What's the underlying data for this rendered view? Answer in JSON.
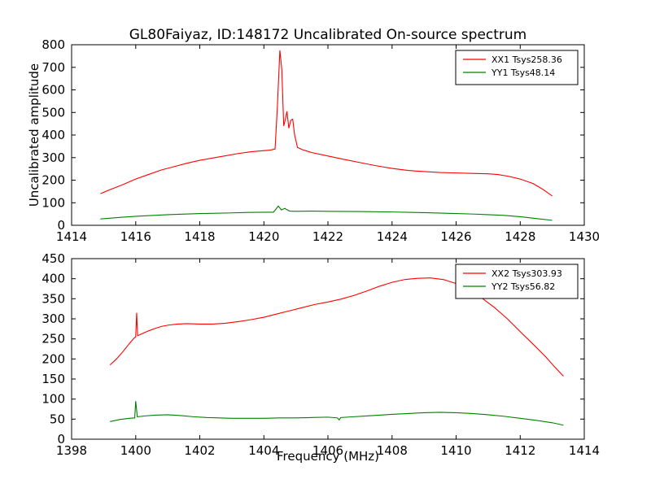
{
  "title": "GL80Faiyaz, ID:148172 Uncalibrated On-source spectrum",
  "chart_data": [
    {
      "type": "line",
      "xlim": [
        1414,
        1430
      ],
      "ylim": [
        0,
        800
      ],
      "xticks": [
        1414,
        1416,
        1418,
        1420,
        1422,
        1424,
        1426,
        1428,
        1430
      ],
      "yticks": [
        0,
        100,
        200,
        300,
        400,
        500,
        600,
        700,
        800
      ],
      "xlabel": "",
      "ylabel": "Uncalibrated amplitude",
      "grid": false,
      "legend_position": "top-right",
      "series": [
        {
          "name": "XX1 Tsys258.36",
          "color": "#ff0000",
          "x": [
            1414.9,
            1415.2,
            1415.6,
            1416.0,
            1416.4,
            1416.8,
            1417.2,
            1417.6,
            1418.0,
            1418.4,
            1418.8,
            1419.2,
            1419.6,
            1420.0,
            1420.2,
            1420.35,
            1420.42,
            1420.5,
            1420.56,
            1420.62,
            1420.68,
            1420.72,
            1420.78,
            1420.84,
            1420.9,
            1420.96,
            1421.05,
            1421.2,
            1421.5,
            1422.0,
            1422.5,
            1423.0,
            1423.5,
            1424.0,
            1424.5,
            1425.0,
            1425.5,
            1426.0,
            1426.5,
            1427.0,
            1427.3,
            1427.6,
            1428.0,
            1428.4,
            1428.7,
            1429.0
          ],
          "y": [
            140,
            158,
            180,
            205,
            225,
            245,
            260,
            275,
            288,
            298,
            308,
            318,
            326,
            331,
            333,
            338,
            520,
            775,
            690,
            440,
            475,
            505,
            430,
            465,
            470,
            400,
            345,
            335,
            322,
            307,
            292,
            278,
            264,
            252,
            243,
            238,
            234,
            232,
            230,
            228,
            225,
            218,
            205,
            185,
            160,
            130
          ]
        },
        {
          "name": "YY1 Tsys48.14",
          "color": "#008000",
          "x": [
            1414.9,
            1415.5,
            1416,
            1417,
            1418,
            1419,
            1419.5,
            1420,
            1420.3,
            1420.45,
            1420.55,
            1420.65,
            1420.8,
            1421,
            1421.5,
            1422,
            1423,
            1424,
            1425,
            1426,
            1426.5,
            1427,
            1427.5,
            1428,
            1428.5,
            1429
          ],
          "y": [
            28,
            35,
            40,
            47,
            52,
            55,
            57,
            58,
            58,
            85,
            68,
            75,
            63,
            62,
            63,
            62,
            61,
            59,
            56,
            52,
            50,
            47,
            44,
            38,
            30,
            22
          ]
        }
      ]
    },
    {
      "type": "line",
      "xlim": [
        1398,
        1414
      ],
      "ylim": [
        0,
        450
      ],
      "xticks": [
        1398,
        1400,
        1402,
        1404,
        1406,
        1408,
        1410,
        1412,
        1414
      ],
      "yticks": [
        0,
        50,
        100,
        150,
        200,
        250,
        300,
        350,
        400,
        450
      ],
      "xlabel": "Frequency (MHz)",
      "ylabel": "",
      "grid": false,
      "legend_position": "top-right",
      "series": [
        {
          "name": "XX2 Tsys303.93",
          "color": "#ff0000",
          "x": [
            1399.2,
            1399.4,
            1399.6,
            1399.8,
            1399.95,
            1400.0,
            1400.03,
            1400.06,
            1400.2,
            1400.4,
            1400.6,
            1400.8,
            1401.0,
            1401.3,
            1401.6,
            1402.0,
            1402.4,
            1402.8,
            1403.2,
            1403.6,
            1404.0,
            1404.4,
            1404.8,
            1405.2,
            1405.6,
            1406.0,
            1406.4,
            1406.8,
            1407.2,
            1407.6,
            1408.0,
            1408.4,
            1408.8,
            1409.2,
            1409.6,
            1410.0,
            1410.4,
            1410.8,
            1411.2,
            1411.6,
            1412.0,
            1412.4,
            1412.8,
            1413.1,
            1413.35
          ],
          "y": [
            185,
            200,
            218,
            238,
            252,
            255,
            315,
            258,
            263,
            270,
            276,
            281,
            284,
            287,
            288,
            287,
            287,
            289,
            293,
            298,
            304,
            312,
            320,
            328,
            336,
            342,
            349,
            358,
            369,
            381,
            391,
            398,
            401,
            402,
            398,
            388,
            372,
            352,
            328,
            300,
            268,
            237,
            205,
            178,
            157
          ]
        },
        {
          "name": "YY2 Tsys56.82",
          "color": "#008000",
          "x": [
            1399.2,
            1399.5,
            1399.8,
            1399.97,
            1400.0,
            1400.05,
            1400.3,
            1400.6,
            1401.0,
            1401.4,
            1401.8,
            1402.2,
            1402.6,
            1403.0,
            1403.5,
            1404.0,
            1404.5,
            1405.0,
            1405.5,
            1406.0,
            1406.3,
            1406.35,
            1406.4,
            1406.8,
            1407.2,
            1407.6,
            1408.0,
            1408.5,
            1409.0,
            1409.5,
            1410.0,
            1410.5,
            1411.0,
            1411.5,
            1412.0,
            1412.5,
            1413.0,
            1413.35
          ],
          "y": [
            44,
            49,
            52,
            53,
            95,
            56,
            58,
            60,
            61,
            59,
            56,
            54,
            53,
            52,
            52,
            52,
            53,
            53,
            54,
            55,
            53,
            48,
            54,
            56,
            58,
            60,
            62,
            64,
            66,
            67,
            66,
            64,
            61,
            57,
            52,
            47,
            41,
            35
          ]
        }
      ]
    }
  ]
}
